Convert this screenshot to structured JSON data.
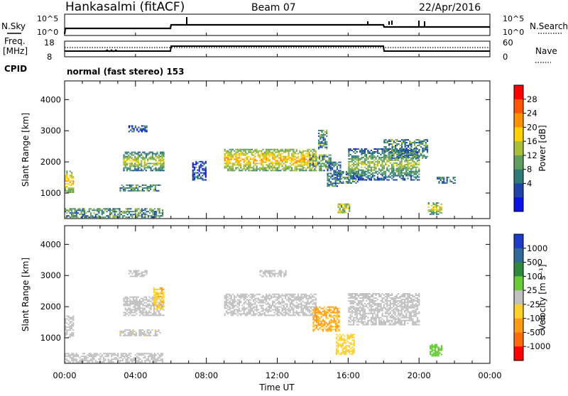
{
  "header": {
    "station": "Hankasalmi (fitACF)",
    "beam": "Beam 07",
    "date": "22/Apr/2016"
  },
  "noise_panel": {
    "left_label": "N.Sky",
    "right_label": "N.Search",
    "left_ticks": [
      "10^5",
      "10^0"
    ],
    "right_ticks": [
      "10^5",
      "10^0"
    ]
  },
  "freq_panel": {
    "left_label_1": "Freq.",
    "left_label_2": "[MHz]",
    "right_label": "Nave",
    "left_ticks": [
      "18",
      "8"
    ],
    "right_ticks": [
      "60",
      "0"
    ]
  },
  "cpid": {
    "label": "CPID",
    "value": "normal (fast stereo) 153"
  },
  "time_axis": {
    "label": "Time UT",
    "ticks": [
      "00:00",
      "04:00",
      "08:00",
      "12:00",
      "16:00",
      "20:00",
      "00:00"
    ]
  },
  "colorbar_power": {
    "label": "Power [dB]",
    "ticks": [
      "28",
      "24",
      "20",
      "16",
      "12",
      "8",
      "4"
    ],
    "colors": [
      "#ff0000",
      "#ff5500",
      "#ff9000",
      "#ffd100",
      "#aabd37",
      "#5fa05f",
      "#2e7a7a",
      "#1e44a8",
      "#0a14e6"
    ]
  },
  "colorbar_velocity": {
    "label": "Velocity [m s⁻¹]",
    "ticks": [
      "1000",
      "500",
      "100",
      "25",
      "-25",
      "-100",
      "-500",
      "-1000"
    ],
    "colors": [
      "#1e3cc8",
      "#2e6a9a",
      "#2e8a3a",
      "#66cc33",
      "#c0c0c0",
      "#ffd028",
      "#ff9a14",
      "#ff6a0a",
      "#ff0000"
    ]
  },
  "chart_data": [
    {
      "type": "heatmap",
      "name": "power",
      "ylabel": "Slant Range [km]",
      "xlabel": "Time UT",
      "xlim": [
        0,
        24
      ],
      "ylim": [
        180,
        4600
      ],
      "yticks": [
        "4000",
        "3000",
        "2000",
        "1000"
      ],
      "ytick_values": [
        4000,
        3000,
        2000,
        1000
      ],
      "scale_label": "Power [dB]",
      "scale_range": [
        0,
        32
      ],
      "blobs": [
        {
          "t": [
            0.0,
            0.5
          ],
          "r": [
            1000,
            1700
          ],
          "v": 22
        },
        {
          "t": [
            0.0,
            5.5
          ],
          "r": [
            200,
            500
          ],
          "v": 10
        },
        {
          "t": [
            3.3,
            5.6
          ],
          "r": [
            1700,
            2300
          ],
          "v": 18
        },
        {
          "t": [
            3.1,
            5.4
          ],
          "r": [
            1050,
            1250
          ],
          "v": 10
        },
        {
          "t": [
            3.6,
            4.6
          ],
          "r": [
            2950,
            3150
          ],
          "v": 6
        },
        {
          "t": [
            7.2,
            8.0
          ],
          "r": [
            1400,
            2000
          ],
          "v": 5
        },
        {
          "t": [
            9.0,
            14.2
          ],
          "r": [
            1700,
            2400
          ],
          "v": 22
        },
        {
          "t": [
            13.8,
            15.0
          ],
          "r": [
            1700,
            2200
          ],
          "v": 12
        },
        {
          "t": [
            14.8,
            15.6
          ],
          "r": [
            1200,
            2000
          ],
          "v": 8
        },
        {
          "t": [
            15.5,
            16.5
          ],
          "r": [
            1300,
            1700
          ],
          "v": 10
        },
        {
          "t": [
            15.4,
            16.1
          ],
          "r": [
            350,
            650
          ],
          "v": 14
        },
        {
          "t": [
            16.0,
            20.0
          ],
          "r": [
            1400,
            2400
          ],
          "v": 16
        },
        {
          "t": [
            18.0,
            20.5
          ],
          "r": [
            2100,
            2700
          ],
          "v": 10
        },
        {
          "t": [
            20.5,
            21.3
          ],
          "r": [
            300,
            700
          ],
          "v": 20
        },
        {
          "t": [
            21.0,
            22.0
          ],
          "r": [
            1300,
            1500
          ],
          "v": 8
        },
        {
          "t": [
            14.3,
            14.8
          ],
          "r": [
            2400,
            3000
          ],
          "v": 10
        }
      ]
    },
    {
      "type": "heatmap",
      "name": "velocity",
      "ylabel": "Slant Range [km]",
      "xlabel": "Time UT",
      "xlim": [
        0,
        24
      ],
      "ylim": [
        180,
        4600
      ],
      "yticks": [
        "4000",
        "3000",
        "2000",
        "1000"
      ],
      "ytick_values": [
        4000,
        3000,
        2000,
        1000
      ],
      "scale_label": "Velocity [m s⁻¹]",
      "scale_range": [
        -1000,
        1000
      ],
      "blobs": [
        {
          "t": [
            0.0,
            0.5
          ],
          "r": [
            1000,
            1700
          ],
          "v": 0
        },
        {
          "t": [
            0.0,
            5.5
          ],
          "r": [
            200,
            500
          ],
          "v": -50
        },
        {
          "t": [
            3.3,
            5.6
          ],
          "r": [
            1700,
            2300
          ],
          "v": 0
        },
        {
          "t": [
            5.0,
            5.6
          ],
          "r": [
            1900,
            2600
          ],
          "v": -300
        },
        {
          "t": [
            3.1,
            5.4
          ],
          "r": [
            1050,
            1250
          ],
          "v": -60
        },
        {
          "t": [
            9.0,
            14.2
          ],
          "r": [
            1700,
            2400
          ],
          "v": 0
        },
        {
          "t": [
            14.0,
            15.5
          ],
          "r": [
            1200,
            2000
          ],
          "v": -350
        },
        {
          "t": [
            15.3,
            16.3
          ],
          "r": [
            450,
            1100
          ],
          "v": -250
        },
        {
          "t": [
            16.0,
            20.0
          ],
          "r": [
            1400,
            2400
          ],
          "v": 0
        },
        {
          "t": [
            20.6,
            21.3
          ],
          "r": [
            400,
            800
          ],
          "v": 200
        },
        {
          "t": [
            11.0,
            12.5
          ],
          "r": [
            2950,
            3150
          ],
          "v": 0
        },
        {
          "t": [
            3.6,
            4.6
          ],
          "r": [
            2950,
            3150
          ],
          "v": 0
        }
      ]
    }
  ]
}
